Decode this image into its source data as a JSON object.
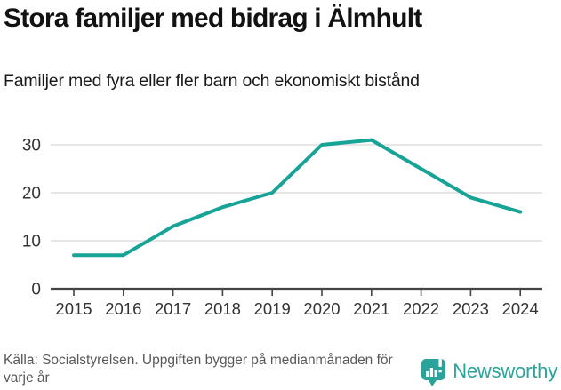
{
  "header": {
    "title": "Stora familjer med bidrag i Älmhult",
    "subtitle": "Familjer med fyra eller fler barn och ekonomiskt bistånd"
  },
  "chart_data": {
    "type": "line",
    "title": "Stora familjer med bidrag i Älmhult",
    "subtitle": "Familjer med fyra eller fler barn och ekonomiskt bistånd",
    "x": [
      2015,
      2016,
      2017,
      2018,
      2019,
      2020,
      2021,
      2022,
      2023,
      2024
    ],
    "series": [
      {
        "name": "Familjer med fyra eller fler barn och ekonomiskt bistånd",
        "values": [
          7,
          7,
          13,
          17,
          20,
          30,
          31,
          25,
          19,
          16
        ]
      }
    ],
    "xlabel": "",
    "ylabel": "",
    "ylim": [
      0,
      33
    ],
    "yticks": [
      0,
      10,
      20,
      30
    ],
    "grid": true,
    "legend": "none",
    "line_color": "#17a497",
    "grid_color": "#dedede",
    "axis_color": "#444444",
    "tick_label_color": "#333333"
  },
  "footer": {
    "source": "Källa: Socialstyrelsen. Uppgiften bygger på medianmånaden för varje år",
    "logo_text": "Newsworthy",
    "logo_color": "#2aa39a"
  }
}
